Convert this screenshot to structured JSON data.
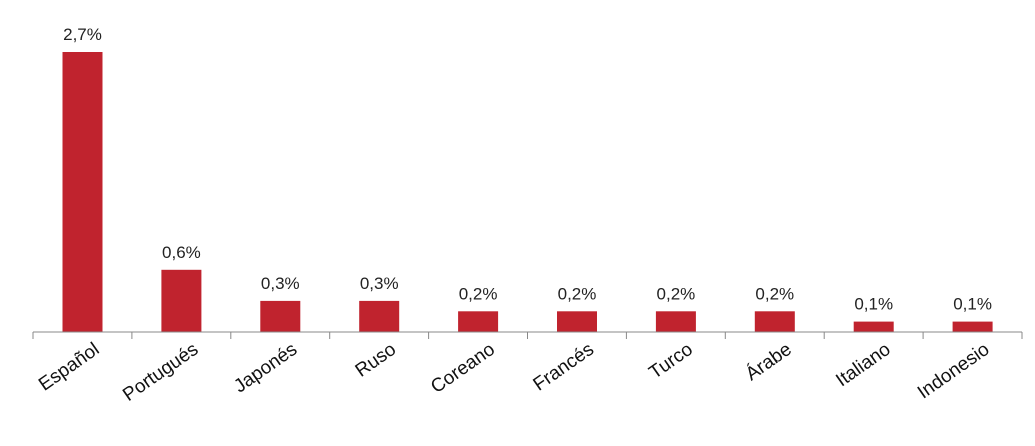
{
  "chart_data": {
    "type": "bar",
    "categories": [
      "Español",
      "Portugués",
      "Japonés",
      "Ruso",
      "Coreano",
      "Francés",
      "Turco",
      "Árabe",
      "Italiano",
      "Indonesio"
    ],
    "values": [
      2.7,
      0.6,
      0.3,
      0.3,
      0.2,
      0.2,
      0.2,
      0.2,
      0.1,
      0.1
    ],
    "data_labels": [
      "2,7%",
      "0,6%",
      "0,3%",
      "0,3%",
      "0,2%",
      "0,2%",
      "0,2%",
      "0,2%",
      "0,1%",
      "0,1%"
    ],
    "title": "",
    "xlabel": "",
    "ylabel": "",
    "ylim": [
      0,
      2.7
    ],
    "grid": false,
    "bar_color": "#c0232e"
  }
}
